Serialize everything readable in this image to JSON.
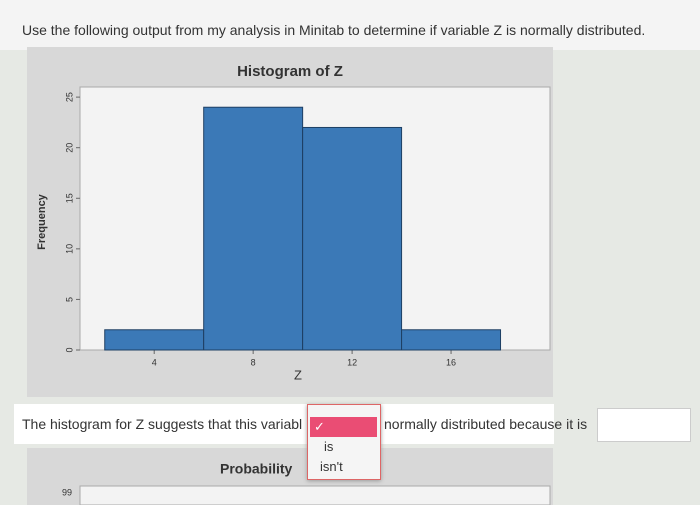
{
  "question": "Use the following output from my analysis in Minitab to determine if variable Z is normally distributed.",
  "chart_data": {
    "type": "histogram",
    "title": "Histogram of Z",
    "xlabel": "Z",
    "ylabel": "Frequency",
    "bins": [
      2,
      6,
      10,
      14,
      18
    ],
    "values": [
      2,
      24,
      22,
      2
    ],
    "color": "#3b79b7",
    "xlim": [
      1,
      20
    ],
    "xticks": [
      4,
      8,
      12,
      16
    ],
    "ylim": [
      0,
      26
    ],
    "yticks": [
      0,
      5,
      10,
      15,
      20,
      25
    ]
  },
  "answer_line": {
    "before": "The histogram for Z suggests that this variabl",
    "selected": "✓",
    "options": [
      "is",
      "isn't"
    ],
    "after": "normally distributed because it is"
  },
  "next_chart": {
    "title": "Probability",
    "tick": "99"
  }
}
